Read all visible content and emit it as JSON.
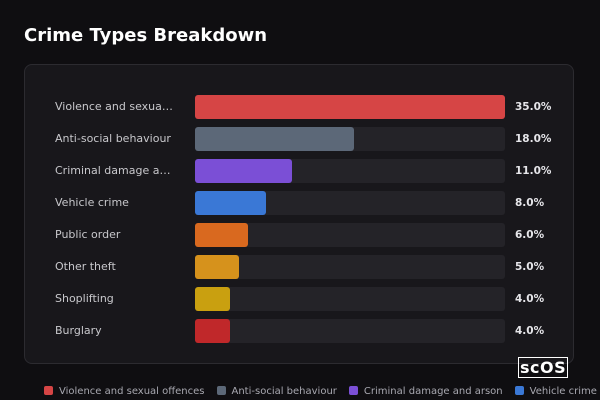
{
  "chart_data": {
    "type": "bar",
    "orientation": "horizontal",
    "title": "Crime Types Breakdown",
    "categories": [
      "Violence and sexual offences",
      "Anti-social behaviour",
      "Criminal damage and arson",
      "Vehicle crime",
      "Public order",
      "Other theft",
      "Shoplifting",
      "Burglary"
    ],
    "values": [
      35,
      18,
      11,
      8,
      6,
      5,
      4,
      4
    ],
    "value_labels": [
      "35.0%",
      "18.0%",
      "11.0%",
      "8.0%",
      "6.0%",
      "5.0%",
      "4.0%",
      "4.0%"
    ],
    "colors": [
      "#d64545",
      "#5c6878",
      "#7b4fd6",
      "#3a78d6",
      "#d9691f",
      "#d6921c",
      "#c9a010",
      "#c0282a"
    ],
    "xlim": [
      0,
      35
    ]
  },
  "brand": "scOS"
}
